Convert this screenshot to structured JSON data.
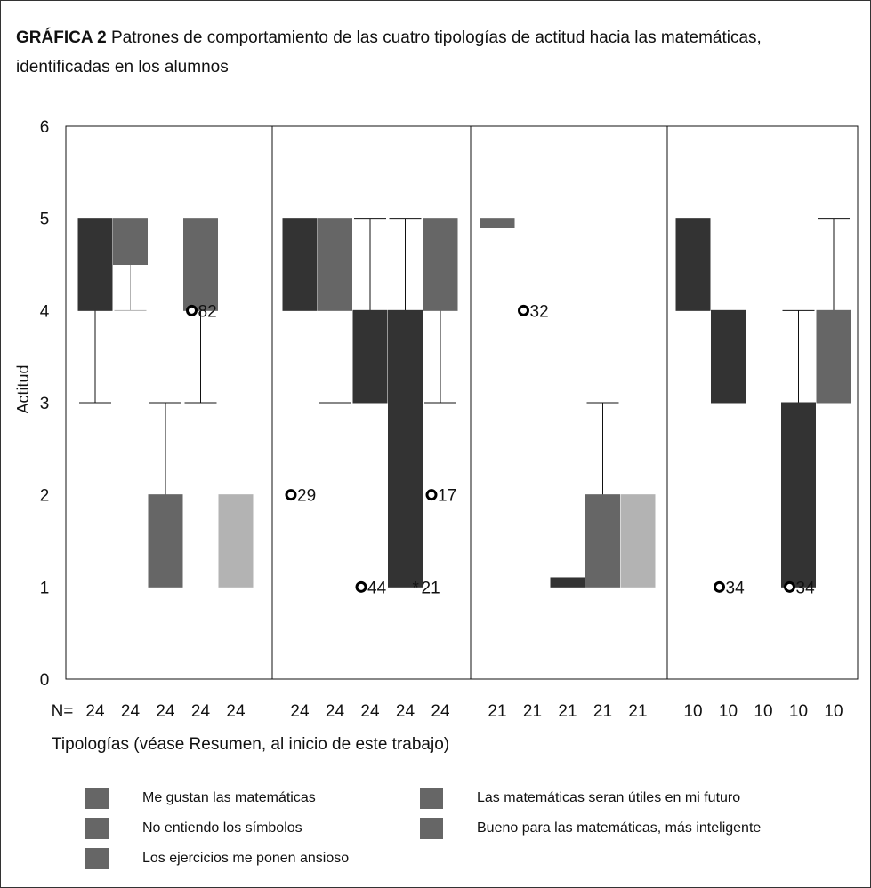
{
  "header": {
    "figure_label": "GRÁFICA 2",
    "caption": "Patrones de comportamiento de las cuatro tipologías de actitud hacia las matemáticas, identificadas en los alumnos"
  },
  "colors": {
    "dark": "#333333",
    "medium": "#666666",
    "light": "#b3b3b3",
    "axis": "#111111"
  },
  "chart_data": {
    "type": "boxplot",
    "ylabel": "Actitud",
    "xlabel": "Tipologías (véase Resumen, al inicio de este trabajo)",
    "n_prefix": "N=",
    "ylim": [
      0,
      6
    ],
    "yticks": [
      0,
      1,
      2,
      3,
      4,
      5,
      6
    ],
    "grid": false,
    "legend_position": "bottom",
    "series": [
      {
        "name": "Me gustan las matemáticas",
        "color": "#333333"
      },
      {
        "name": "No entiendo los símbolos",
        "color": "#666666"
      },
      {
        "name": "Los ejercicios me ponen ansioso",
        "color": "#666666"
      },
      {
        "name": "Las matemáticas seran útiles en mi futuro",
        "color": "#666666"
      },
      {
        "name": "Bueno para las matemáticas, más inteligente",
        "color": "#b3b3b3"
      }
    ],
    "groups": [
      {
        "boxes": [
          {
            "n": "24",
            "q1": 4,
            "q3": 5,
            "wlo": 3,
            "whi": 5,
            "color": "#333333"
          },
          {
            "n": "24",
            "q1": 4.5,
            "q3": 5,
            "wlo": 4,
            "whi": 5,
            "color": "#666666",
            "whisker_color": "#b3b3b3"
          },
          {
            "n": "24",
            "q1": 1,
            "q3": 2,
            "wlo": 1,
            "whi": 3,
            "color": "#666666"
          },
          {
            "n": "24",
            "q1": 4,
            "q3": 5,
            "wlo": 3,
            "whi": 5,
            "color": "#666666"
          },
          {
            "n": "24",
            "q1": 1,
            "q3": 2,
            "wlo": 1,
            "whi": 2,
            "color": "#b3b3b3"
          }
        ],
        "outliers": [
          {
            "box": 3,
            "value": 4,
            "label": "82",
            "star": false
          }
        ]
      },
      {
        "boxes": [
          {
            "n": "24",
            "q1": 4,
            "q3": 5,
            "wlo": 4,
            "whi": 5,
            "color": "#333333"
          },
          {
            "n": "24",
            "q1": 4,
            "q3": 5,
            "wlo": 3,
            "whi": 5,
            "color": "#666666"
          },
          {
            "n": "24",
            "q1": 3,
            "q3": 4,
            "wlo": 3,
            "whi": 5,
            "color": "#333333"
          },
          {
            "n": "24",
            "q1": 1,
            "q3": 4,
            "wlo": 1,
            "whi": 5,
            "color": "#333333"
          },
          {
            "n": "24",
            "q1": 4,
            "q3": 5,
            "wlo": 3,
            "whi": 5,
            "color": "#666666"
          }
        ],
        "outliers": [
          {
            "box": 0,
            "value": 2,
            "label": "29",
            "star": false
          },
          {
            "box": 2,
            "value": 1,
            "label": "44",
            "star": false
          },
          {
            "box": 3,
            "value": 1,
            "label": "21",
            "star": true
          },
          {
            "box": 4,
            "value": 2,
            "label": "17",
            "star": false
          }
        ]
      },
      {
        "boxes": [
          {
            "n": "21",
            "q1": 4.9,
            "q3": 5,
            "wlo": 4.9,
            "whi": 5,
            "color": "#666666"
          },
          {
            "n": "21",
            "q1": null,
            "q3": null,
            "wlo": null,
            "whi": null,
            "color": "#666666"
          },
          {
            "n": "21",
            "q1": 1,
            "q3": 1.1,
            "wlo": 1,
            "whi": 1.1,
            "color": "#333333"
          },
          {
            "n": "21",
            "q1": 1,
            "q3": 2,
            "wlo": 1,
            "whi": 3,
            "color": "#666666"
          },
          {
            "n": "21",
            "q1": 1,
            "q3": 2,
            "wlo": 1,
            "whi": 2,
            "color": "#b3b3b3"
          }
        ],
        "outliers": [
          {
            "box": 1,
            "value": 4,
            "label": "32",
            "star": false
          }
        ]
      },
      {
        "boxes": [
          {
            "n": "10",
            "q1": 4,
            "q3": 5,
            "wlo": 4,
            "whi": 5,
            "color": "#333333"
          },
          {
            "n": "10",
            "q1": 3,
            "q3": 4,
            "wlo": 3,
            "whi": 4,
            "color": "#333333"
          },
          {
            "n": "10",
            "q1": null,
            "q3": null,
            "wlo": null,
            "whi": null,
            "color": "#666666"
          },
          {
            "n": "10",
            "q1": 1,
            "q3": 3,
            "wlo": 1,
            "whi": 4,
            "color": "#333333"
          },
          {
            "n": "10",
            "q1": 3,
            "q3": 4,
            "wlo": 3,
            "whi": 5,
            "color": "#666666"
          }
        ],
        "outliers": [
          {
            "box": 1,
            "value": 1,
            "label": "34",
            "star": false
          },
          {
            "box": 3,
            "value": 1,
            "label": "34",
            "star": false
          }
        ]
      }
    ],
    "legend": [
      {
        "label": "Me gustan las matemáticas",
        "color": "#666666"
      },
      {
        "label": "Las matemáticas seran útiles en mi futuro",
        "color": "#666666"
      },
      {
        "label": "No entiendo los símbolos",
        "color": "#666666"
      },
      {
        "label": "Bueno para las matemáticas, más inteligente",
        "color": "#666666"
      },
      {
        "label": "Los ejercicios me ponen ansioso",
        "color": "#666666"
      }
    ]
  }
}
